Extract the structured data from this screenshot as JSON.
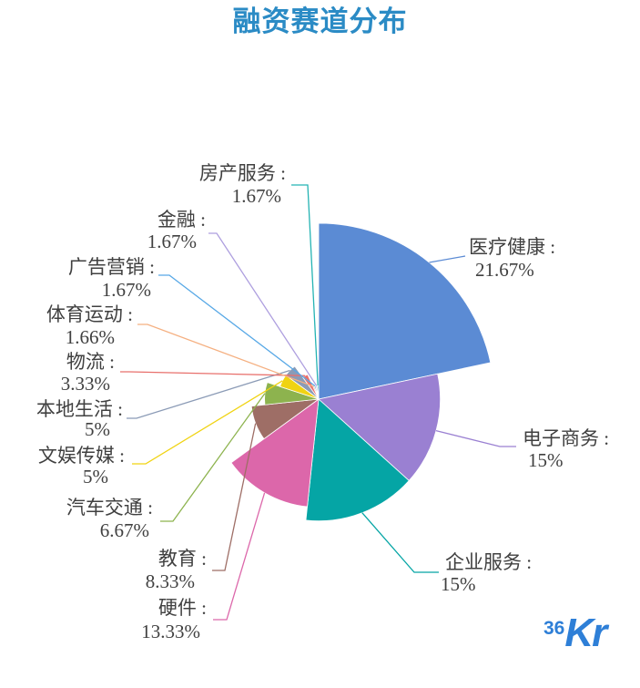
{
  "chart_data": {
    "type": "pie",
    "title": "融资赛道分布",
    "unit": "%",
    "label_separator": " :",
    "slices": [
      {
        "name": "医疗健康",
        "value": 21.67,
        "color": "#5b8bd4"
      },
      {
        "name": "电子商务",
        "value": 15,
        "color": "#9a80d2"
      },
      {
        "name": "企业服务",
        "value": 15,
        "color": "#05a5a5"
      },
      {
        "name": "硬件",
        "value": 13.33,
        "color": "#dc67aa"
      },
      {
        "name": "教育",
        "value": 8.33,
        "color": "#9e6e66"
      },
      {
        "name": "汽车交通",
        "value": 6.67,
        "color": "#8db34e"
      },
      {
        "name": "文娱传媒",
        "value": 5,
        "color": "#f0d312"
      },
      {
        "name": "本地生活",
        "value": 5,
        "color": "#8b9bb6"
      },
      {
        "name": "物流",
        "value": 3.33,
        "color": "#e8706c"
      },
      {
        "name": "体育运动",
        "value": 1.66,
        "color": "#f5b081"
      },
      {
        "name": "广告营销",
        "value": 1.67,
        "color": "#57a8e6"
      },
      {
        "name": "金融",
        "value": 1.67,
        "color": "#ae9fdf"
      },
      {
        "name": "房产服务",
        "value": 1.67,
        "color": "#24b3b3"
      }
    ]
  },
  "title_color": "#2b8bc5",
  "logo": {
    "prefix": "36",
    "suffix": "Kr",
    "color": "#2e7fd7"
  }
}
